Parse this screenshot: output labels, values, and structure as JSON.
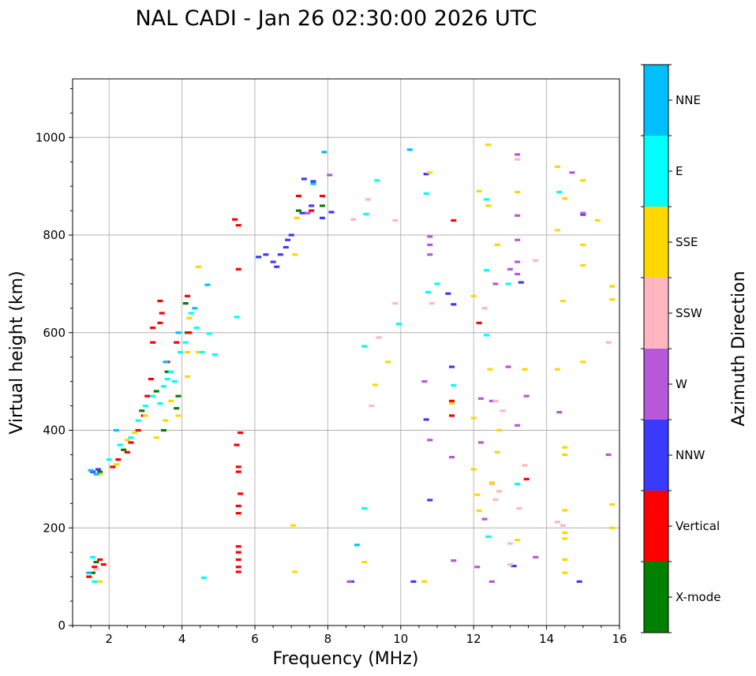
{
  "chart_data": {
    "type": "scatter",
    "title": "NAL CADI - Jan 26 02:30:00 2026 UTC",
    "xlabel": "Frequency (MHz)",
    "ylabel": "Virtual height (km)",
    "xlim": [
      1,
      16
    ],
    "ylim": [
      0,
      1120
    ],
    "xticks": [
      2,
      4,
      6,
      8,
      10,
      12,
      14,
      16
    ],
    "yticks": [
      0,
      200,
      400,
      600,
      800,
      1000
    ],
    "grid": true,
    "colorbar": {
      "label": "Azimuth Direction",
      "categories": [
        {
          "name": "X-mode",
          "color": "#008000"
        },
        {
          "name": "Vertical",
          "color": "#ff0000"
        },
        {
          "name": "NNW",
          "color": "#3a3aff"
        },
        {
          "name": "W",
          "color": "#b658d8"
        },
        {
          "name": "SSW",
          "color": "#ffb6c1"
        },
        {
          "name": "SSE",
          "color": "#ffd700"
        },
        {
          "name": "E",
          "color": "#00ffff"
        },
        {
          "name": "NNE",
          "color": "#00bfff"
        }
      ]
    },
    "series": [
      {
        "name": "X-mode",
        "points": [
          [
            1.55,
            108
          ],
          [
            1.65,
            130
          ],
          [
            3.3,
            480
          ],
          [
            3.5,
            400
          ],
          [
            3.85,
            445
          ],
          [
            3.9,
            470
          ],
          [
            4.1,
            660
          ],
          [
            4.15,
            600
          ],
          [
            7.2,
            850
          ],
          [
            7.85,
            860
          ],
          [
            2.4,
            360
          ],
          [
            2.9,
            440
          ],
          [
            3.6,
            520
          ],
          [
            1.75,
            315
          ]
        ]
      },
      {
        "name": "Vertical",
        "points": [
          [
            1.45,
            100
          ],
          [
            1.6,
            120
          ],
          [
            1.75,
            135
          ],
          [
            1.85,
            125
          ],
          [
            5.55,
            110
          ],
          [
            5.55,
            120
          ],
          [
            5.55,
            135
          ],
          [
            5.55,
            150
          ],
          [
            5.55,
            162
          ],
          [
            5.55,
            230
          ],
          [
            5.55,
            245
          ],
          [
            5.55,
            315
          ],
          [
            5.55,
            325
          ],
          [
            5.6,
            270
          ],
          [
            5.6,
            395
          ],
          [
            5.5,
            370
          ],
          [
            5.55,
            730
          ],
          [
            5.55,
            820
          ],
          [
            5.45,
            832
          ],
          [
            2.1,
            325
          ],
          [
            2.25,
            340
          ],
          [
            2.5,
            355
          ],
          [
            2.6,
            375
          ],
          [
            2.8,
            400
          ],
          [
            2.95,
            430
          ],
          [
            3.05,
            470
          ],
          [
            3.15,
            505
          ],
          [
            3.2,
            580
          ],
          [
            3.2,
            610
          ],
          [
            3.4,
            620
          ],
          [
            3.45,
            640
          ],
          [
            3.4,
            665
          ],
          [
            3.6,
            540
          ],
          [
            3.85,
            580
          ],
          [
            4.2,
            600
          ],
          [
            4.15,
            675
          ],
          [
            7.2,
            880
          ],
          [
            7.55,
            850
          ],
          [
            7.85,
            880
          ],
          [
            11.45,
            830
          ],
          [
            11.4,
            460
          ],
          [
            11.4,
            430
          ],
          [
            12.15,
            620
          ],
          [
            13.45,
            300
          ]
        ]
      },
      {
        "name": "NNW",
        "points": [
          [
            1.55,
            315
          ],
          [
            1.7,
            320
          ],
          [
            6.1,
            755
          ],
          [
            6.3,
            760
          ],
          [
            6.5,
            745
          ],
          [
            6.6,
            735
          ],
          [
            6.7,
            760
          ],
          [
            6.85,
            775
          ],
          [
            6.9,
            790
          ],
          [
            7.0,
            800
          ],
          [
            7.3,
            845
          ],
          [
            7.55,
            860
          ],
          [
            7.6,
            910
          ],
          [
            7.85,
            835
          ],
          [
            8.1,
            847
          ],
          [
            7.35,
            915
          ],
          [
            8.65,
            90
          ],
          [
            10.35,
            90
          ],
          [
            10.7,
            925
          ],
          [
            10.7,
            422
          ],
          [
            10.8,
            257
          ],
          [
            11.3,
            680
          ],
          [
            11.45,
            658
          ],
          [
            11.4,
            530
          ],
          [
            13.1,
            122
          ],
          [
            13.3,
            703
          ],
          [
            14.9,
            90
          ],
          [
            15.0,
            842
          ]
        ]
      },
      {
        "name": "W",
        "points": [
          [
            8.6,
            90
          ],
          [
            12.5,
            90
          ],
          [
            12.2,
            465
          ],
          [
            12.5,
            460
          ],
          [
            12.3,
            218
          ],
          [
            12.95,
            530
          ],
          [
            13.2,
            410
          ],
          [
            13.45,
            470
          ],
          [
            13.2,
            720
          ],
          [
            13.2,
            745
          ],
          [
            13.2,
            840
          ],
          [
            13.2,
            965
          ],
          [
            13.2,
            790
          ],
          [
            13.0,
            730
          ],
          [
            13.7,
            140
          ],
          [
            14.35,
            437
          ],
          [
            14.7,
            928
          ],
          [
            15.0,
            845
          ],
          [
            15.7,
            350
          ],
          [
            10.8,
            780
          ],
          [
            10.8,
            760
          ],
          [
            10.8,
            797
          ],
          [
            10.65,
            500
          ],
          [
            10.8,
            380
          ],
          [
            11.4,
            345
          ],
          [
            11.45,
            133
          ],
          [
            12.6,
            700
          ],
          [
            12.2,
            375
          ],
          [
            12.1,
            120
          ],
          [
            8.05,
            923
          ],
          [
            7.45,
            845
          ]
        ]
      },
      {
        "name": "SSW",
        "points": [
          [
            1.65,
            115
          ],
          [
            8.7,
            832
          ],
          [
            9.1,
            873
          ],
          [
            9.2,
            450
          ],
          [
            9.4,
            590
          ],
          [
            9.85,
            660
          ],
          [
            9.85,
            830
          ],
          [
            10.85,
            660
          ],
          [
            12.5,
            290
          ],
          [
            12.6,
            258
          ],
          [
            12.7,
            275
          ],
          [
            12.8,
            440
          ],
          [
            13.0,
            125
          ],
          [
            13.0,
            168
          ],
          [
            13.25,
            240
          ],
          [
            13.4,
            328
          ],
          [
            13.7,
            748
          ],
          [
            13.2,
            955
          ],
          [
            14.3,
            212
          ],
          [
            14.45,
            205
          ],
          [
            15.7,
            580
          ],
          [
            12.3,
            650
          ],
          [
            12.6,
            460
          ]
        ]
      },
      {
        "name": "SSE",
        "points": [
          [
            1.75,
            90
          ],
          [
            1.75,
            310
          ],
          [
            2.2,
            330
          ],
          [
            2.5,
            380
          ],
          [
            2.7,
            395
          ],
          [
            3.0,
            430
          ],
          [
            3.3,
            385
          ],
          [
            3.55,
            420
          ],
          [
            3.7,
            460
          ],
          [
            3.9,
            430
          ],
          [
            4.15,
            510
          ],
          [
            4.15,
            560
          ],
          [
            4.2,
            630
          ],
          [
            4.45,
            560
          ],
          [
            4.45,
            735
          ],
          [
            7.05,
            205
          ],
          [
            7.1,
            110
          ],
          [
            7.1,
            760
          ],
          [
            7.15,
            835
          ],
          [
            9.3,
            493
          ],
          [
            9.65,
            540
          ],
          [
            9.0,
            130
          ],
          [
            10.65,
            90
          ],
          [
            10.8,
            928
          ],
          [
            11.4,
            455
          ],
          [
            12.0,
            675
          ],
          [
            12.0,
            425
          ],
          [
            12.0,
            320
          ],
          [
            12.1,
            268
          ],
          [
            12.15,
            235
          ],
          [
            12.4,
            985
          ],
          [
            12.4,
            860
          ],
          [
            12.5,
            293
          ],
          [
            12.65,
            780
          ],
          [
            12.65,
            355
          ],
          [
            12.7,
            400
          ],
          [
            13.2,
            888
          ],
          [
            13.2,
            175
          ],
          [
            13.4,
            525
          ],
          [
            14.3,
            940
          ],
          [
            14.3,
            810
          ],
          [
            14.3,
            525
          ],
          [
            14.45,
            665
          ],
          [
            14.5,
            365
          ],
          [
            14.5,
            350
          ],
          [
            14.5,
            236
          ],
          [
            14.5,
            190
          ],
          [
            14.5,
            178
          ],
          [
            14.5,
            135
          ],
          [
            14.5,
            108
          ],
          [
            14.5,
            875
          ],
          [
            15.0,
            912
          ],
          [
            15.0,
            780
          ],
          [
            15.0,
            738
          ],
          [
            15.0,
            540
          ],
          [
            15.4,
            830
          ],
          [
            15.8,
            695
          ],
          [
            15.8,
            668
          ],
          [
            15.8,
            248
          ],
          [
            15.8,
            200
          ],
          [
            12.15,
            890
          ],
          [
            12.45,
            525
          ]
        ]
      },
      {
        "name": "E",
        "points": [
          [
            1.55,
            140
          ],
          [
            1.6,
            90
          ],
          [
            2.0,
            340
          ],
          [
            2.3,
            370
          ],
          [
            2.6,
            385
          ],
          [
            2.8,
            420
          ],
          [
            3.0,
            450
          ],
          [
            3.2,
            470
          ],
          [
            3.4,
            455
          ],
          [
            3.5,
            490
          ],
          [
            3.6,
            505
          ],
          [
            3.7,
            520
          ],
          [
            3.8,
            500
          ],
          [
            3.95,
            560
          ],
          [
            4.1,
            580
          ],
          [
            4.25,
            640
          ],
          [
            4.4,
            610
          ],
          [
            4.55,
            560
          ],
          [
            4.75,
            598
          ],
          [
            4.9,
            555
          ],
          [
            5.5,
            632
          ],
          [
            9.0,
            240
          ],
          [
            9.0,
            572
          ],
          [
            9.05,
            843
          ],
          [
            9.35,
            912
          ],
          [
            9.95,
            618
          ],
          [
            10.7,
            885
          ],
          [
            10.75,
            683
          ],
          [
            11.0,
            700
          ],
          [
            11.45,
            492
          ],
          [
            12.35,
            728
          ],
          [
            12.35,
            873
          ],
          [
            12.35,
            595
          ],
          [
            12.4,
            182
          ],
          [
            12.95,
            700
          ],
          [
            13.2,
            290
          ],
          [
            14.35,
            888
          ],
          [
            4.6,
            98
          ]
        ]
      },
      {
        "name": "NNE",
        "points": [
          [
            1.45,
            108
          ],
          [
            1.5,
            318
          ],
          [
            1.65,
            310
          ],
          [
            7.9,
            970
          ],
          [
            4.7,
            698
          ],
          [
            10.25,
            975
          ],
          [
            2.2,
            400
          ],
          [
            3.55,
            540
          ],
          [
            3.9,
            600
          ],
          [
            4.35,
            650
          ],
          [
            8.8,
            165
          ],
          [
            7.6,
            905
          ]
        ]
      }
    ]
  }
}
